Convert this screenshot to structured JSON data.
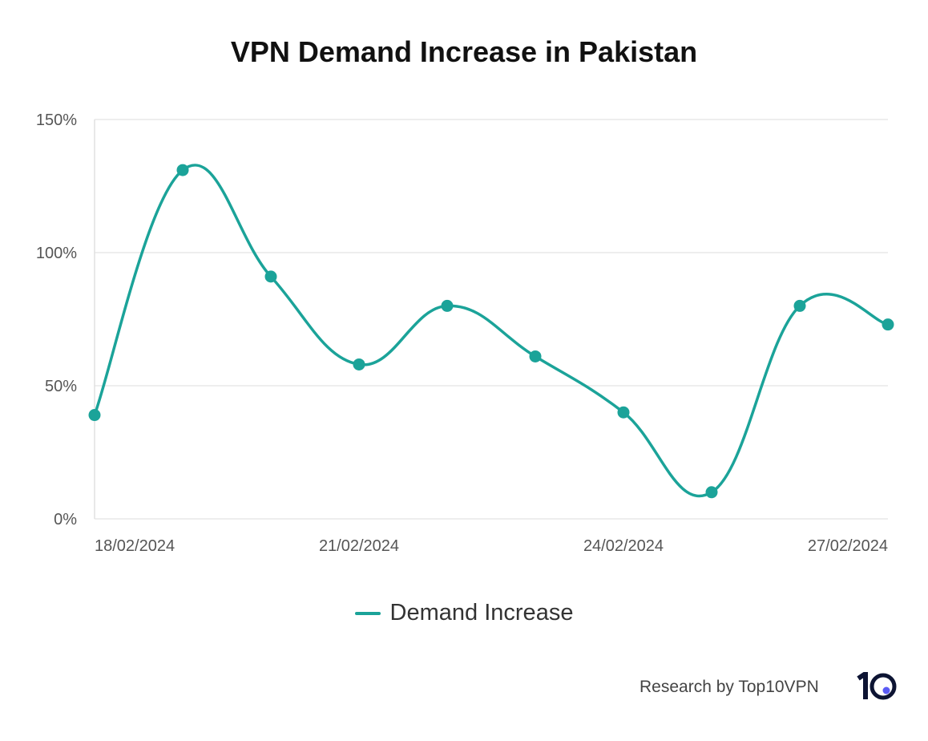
{
  "chart_data": {
    "type": "line",
    "title": "VPN Demand Increase in Pakistan",
    "x": [
      "18/02/2024",
      "19/02/2024",
      "20/02/2024",
      "21/02/2024",
      "22/02/2024",
      "23/02/2024",
      "24/02/2024",
      "25/02/2024",
      "26/02/2024",
      "27/02/2024"
    ],
    "x_tick_labels": [
      "18/02/2024",
      "21/02/2024",
      "24/02/2024",
      "27/02/2024"
    ],
    "series": [
      {
        "name": "Demand Increase",
        "values": [
          39,
          131,
          91,
          58,
          80,
          61,
          40,
          10,
          80,
          73
        ],
        "color": "#1ba399"
      }
    ],
    "y_tick_labels": [
      "0%",
      "50%",
      "100%",
      "150%"
    ],
    "ylim": [
      0,
      150
    ],
    "grid": true,
    "legend": "bottom",
    "smooth": true
  },
  "footer": {
    "credit": "Research by Top10VPN",
    "logo_text": "10",
    "logo_dot_color": "#5b5bf5"
  }
}
